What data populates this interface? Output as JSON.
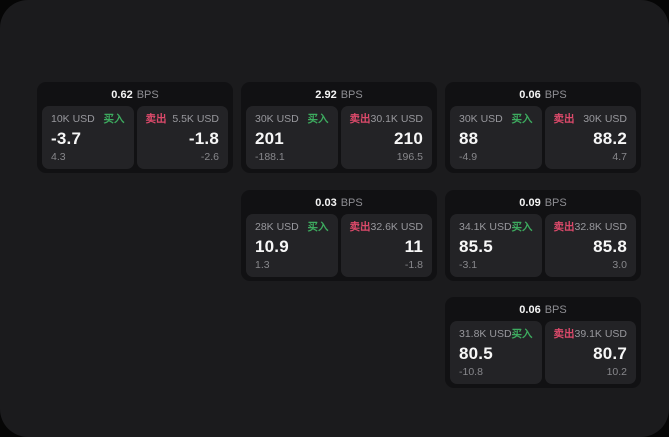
{
  "labels": {
    "bps": "BPS",
    "buy": "买入",
    "sell": "卖出"
  },
  "colors": {
    "buy_green": "#3dab5f",
    "sell_red": "#dd4a6b",
    "frame_bg": "#1b1b1d",
    "card_bg": "#111113",
    "panel_bg": "#232326"
  },
  "cards": [
    {
      "bps": "0.62",
      "buy": {
        "amount": "10K USD",
        "price": "-3.7",
        "delta": "4.3"
      },
      "sell": {
        "amount": "5.5K USD",
        "price": "-1.8",
        "delta": "-2.6"
      }
    },
    {
      "bps": "2.92",
      "buy": {
        "amount": "30K USD",
        "price": "201",
        "delta": "-188.1"
      },
      "sell": {
        "amount": "30.1K USD",
        "price": "210",
        "delta": "196.5"
      }
    },
    {
      "bps": "0.06",
      "buy": {
        "amount": "30K USD",
        "price": "88",
        "delta": "-4.9"
      },
      "sell": {
        "amount": "30K USD",
        "price": "88.2",
        "delta": "4.7"
      }
    },
    {
      "bps": "0.03",
      "buy": {
        "amount": "28K USD",
        "price": "10.9",
        "delta": "1.3"
      },
      "sell": {
        "amount": "32.6K USD",
        "price": "11",
        "delta": "-1.8"
      }
    },
    {
      "bps": "0.09",
      "buy": {
        "amount": "34.1K USD",
        "price": "85.5",
        "delta": "-3.1"
      },
      "sell": {
        "amount": "32.8K USD",
        "price": "85.8",
        "delta": "3.0"
      }
    },
    {
      "bps": "0.06",
      "buy": {
        "amount": "31.8K USD",
        "price": "80.5",
        "delta": "-10.8"
      },
      "sell": {
        "amount": "39.1K USD",
        "price": "80.7",
        "delta": "10.2"
      }
    }
  ]
}
